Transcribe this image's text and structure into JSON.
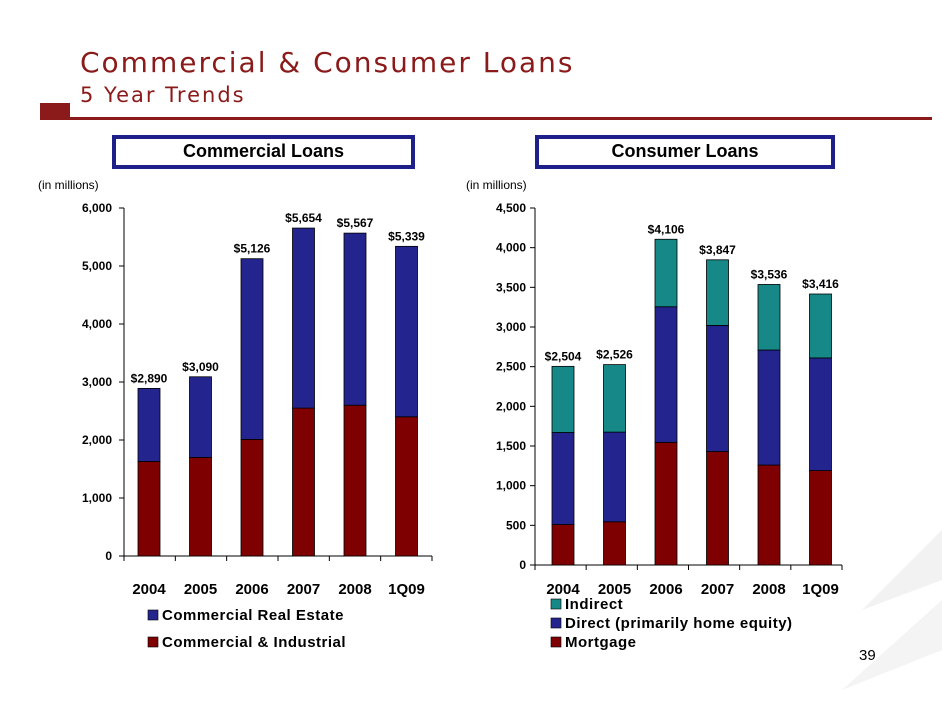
{
  "slide": {
    "title": "Commercial & Consumer Loans",
    "subtitle": "5 Year Trends",
    "page_number": "39",
    "accent_color": "#8b1a1a",
    "frame_color": "#1f1f8a"
  },
  "chart_data": [
    {
      "type": "bar",
      "stacked": true,
      "title": "Commercial Loans",
      "units_label": "(in millions)",
      "categories": [
        "2004",
        "2005",
        "2006",
        "2007",
        "2008",
        "1Q09"
      ],
      "ylim": [
        0,
        6000
      ],
      "yticks": [
        0,
        1000,
        2000,
        3000,
        4000,
        5000,
        6000
      ],
      "ytick_labels": [
        "0",
        "1,000",
        "2,000",
        "3,000",
        "4,000",
        "5,000",
        "6,000"
      ],
      "series": [
        {
          "name": "Commercial & Industrial",
          "color": "#7f0000",
          "values": [
            1630,
            1700,
            2010,
            2550,
            2600,
            2400
          ]
        },
        {
          "name": "Commercial Real Estate",
          "color": "#24248f",
          "values": [
            1260,
            1390,
            3116,
            3104,
            2967,
            2939
          ]
        }
      ],
      "totals": [
        2890,
        3090,
        5126,
        5654,
        5567,
        5339
      ],
      "total_labels": [
        "$2,890",
        "$3,090",
        "$5,126",
        "$5,654",
        "$5,567",
        "$5,339"
      ],
      "legend": [
        "Commercial Real Estate",
        "Commercial & Industrial"
      ]
    },
    {
      "type": "bar",
      "stacked": true,
      "title": "Consumer Loans",
      "units_label": "(in millions)",
      "categories": [
        "2004",
        "2005",
        "2006",
        "2007",
        "2008",
        "1Q09"
      ],
      "ylim": [
        0,
        4500
      ],
      "yticks": [
        0,
        500,
        1000,
        1500,
        2000,
        2500,
        3000,
        3500,
        4000,
        4500
      ],
      "ytick_labels": [
        "0",
        "500",
        "1,000",
        "1,500",
        "2,000",
        "2,500",
        "3,000",
        "3,500",
        "4,000",
        "4,500"
      ],
      "series": [
        {
          "name": "Mortgage",
          "color": "#7f0000",
          "values": [
            510,
            545,
            1545,
            1430,
            1260,
            1190
          ]
        },
        {
          "name": "Direct (primarily home equity)",
          "color": "#24248f",
          "values": [
            1160,
            1130,
            1710,
            1590,
            1450,
            1420
          ]
        },
        {
          "name": "Indirect",
          "color": "#178888",
          "values": [
            834,
            851,
            851,
            827,
            826,
            806
          ]
        }
      ],
      "totals": [
        2504,
        2526,
        4106,
        3847,
        3536,
        3416
      ],
      "total_labels": [
        "$2,504",
        "$2,526",
        "$4,106",
        "$3,847",
        "$3,536",
        "$3,416"
      ],
      "legend": [
        "Indirect",
        "Direct (primarily home equity)",
        "Mortgage"
      ]
    }
  ]
}
